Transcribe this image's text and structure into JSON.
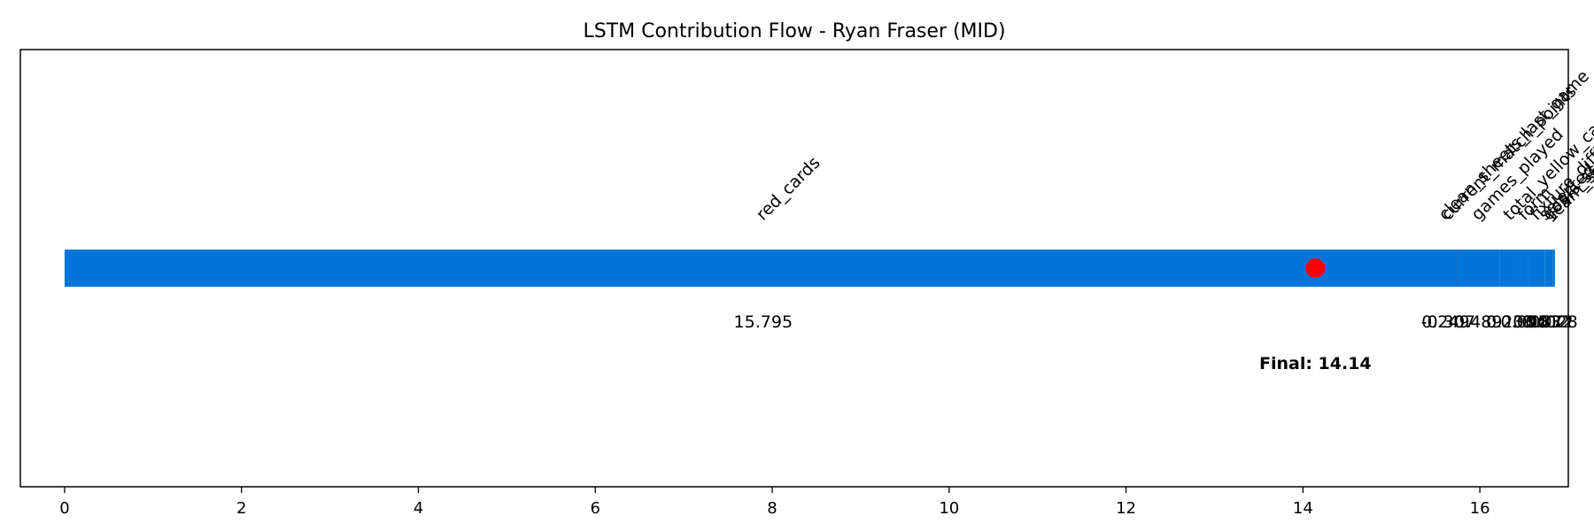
{
  "chart_data": {
    "type": "waterfall",
    "title": "LSTM Contribution Flow - Ryan Fraser (MID)",
    "xlabel": "",
    "ylabel": "",
    "xlim": [
      -0.5,
      17.0
    ],
    "xticks": [
      0,
      2,
      4,
      6,
      8,
      10,
      12,
      14,
      16
    ],
    "grid": false,
    "colors": {
      "negative": "#ff4136",
      "positive": "#0074d9",
      "final_marker": "#ff0000"
    },
    "start": 0,
    "contributions": [
      {
        "feature": "red_cards",
        "value": 15.795,
        "label": "15.795"
      },
      {
        "feature": "current_match_points",
        "value": -0.307,
        "label": "-0.307"
      },
      {
        "feature": "clean_sheets_last_game",
        "value": 0.249,
        "label": "0.249"
      },
      {
        "feature": "games_played",
        "value": 0.489,
        "label": "0.489"
      },
      {
        "feature": "total_yellow_cards_season",
        "value": 0.233,
        "label": "0.233"
      },
      {
        "feature": "form",
        "value": 0.095,
        "label": "0.095"
      },
      {
        "feature": "fixture_difficulty",
        "value": 0.183,
        "label": "0.183"
      },
      {
        "feature": "selected",
        "value": 0.012,
        "label": "0.012"
      },
      {
        "feature": "goals_scored",
        "value": 0.072,
        "label": "0.072"
      },
      {
        "feature": "team_score",
        "value": 0.028,
        "label": "0.028"
      }
    ],
    "final_label": "Final: 14.14",
    "final_value": 14.14
  }
}
